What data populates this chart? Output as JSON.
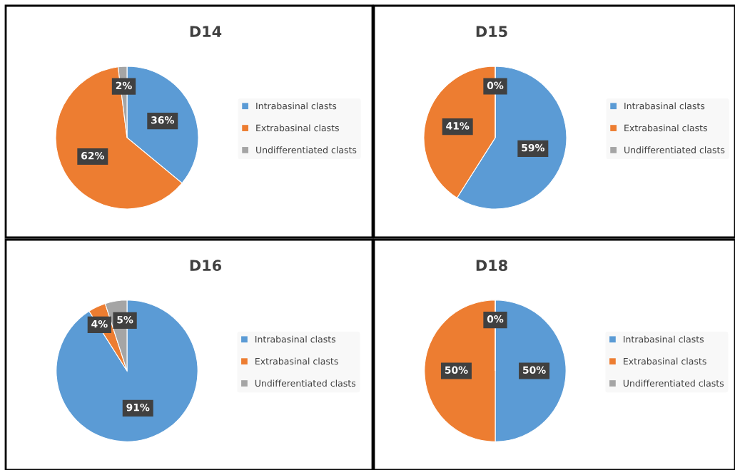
{
  "chart_data": [
    {
      "type": "pie",
      "title": "D14",
      "categories": [
        "Intrabasinal clasts",
        "Extrabasinal clasts",
        "Undifferentiated clasts"
      ],
      "values": [
        36,
        62,
        2
      ],
      "colors": [
        "#5b9bd5",
        "#ed7d31",
        "#a5a5a5"
      ],
      "value_labels": [
        "36%",
        "62%",
        "2%"
      ],
      "legend": "right"
    },
    {
      "type": "pie",
      "title": "D15",
      "categories": [
        "Intrabasinal clasts",
        "Extrabasinal clasts",
        "Undifferentiated clasts"
      ],
      "values": [
        59,
        41,
        0
      ],
      "colors": [
        "#5b9bd5",
        "#ed7d31",
        "#a5a5a5"
      ],
      "value_labels": [
        "59%",
        "41%",
        "0%"
      ],
      "legend": "right"
    },
    {
      "type": "pie",
      "title": "D16",
      "categories": [
        "Intrabasinal clasts",
        "Extrabasinal clasts",
        "Undifferentiated clasts"
      ],
      "values": [
        91,
        4,
        5
      ],
      "colors": [
        "#5b9bd5",
        "#ed7d31",
        "#a5a5a5"
      ],
      "value_labels": [
        "91%",
        "4%",
        "5%"
      ],
      "legend": "right"
    },
    {
      "type": "pie",
      "title": "D18",
      "categories": [
        "Intrabasinal clasts",
        "Extrabasinal clasts",
        "Undifferentiated clasts"
      ],
      "values": [
        50,
        50,
        0
      ],
      "colors": [
        "#5b9bd5",
        "#ed7d31",
        "#a5a5a5"
      ],
      "value_labels": [
        "50%",
        "50%",
        "0%"
      ],
      "legend": "right"
    }
  ]
}
